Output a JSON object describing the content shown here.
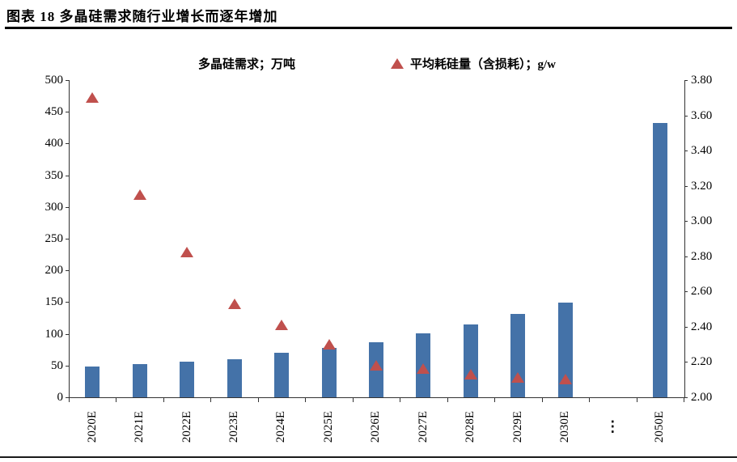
{
  "header": {
    "title": "图表 18 多晶硅需求随行业增长而逐年增加"
  },
  "legend": [
    {
      "label": "多晶硅需求；万吨",
      "marker": "square",
      "color": "#4472A8"
    },
    {
      "label": "平均耗硅量（含损耗）；g/w",
      "marker": "triangle",
      "color": "#C0504D"
    }
  ],
  "chart_data": {
    "type": "bar",
    "title": "图表 18 多晶硅需求随行业增长而逐年增加",
    "categories": [
      "2020E",
      "2021E",
      "2022E",
      "2023E",
      "2024E",
      "2025E",
      "2026E",
      "2027E",
      "2028E",
      "2029E",
      "2030E",
      "⋮",
      "2050E"
    ],
    "series": [
      {
        "name": "多晶硅需求；万吨",
        "type": "bar",
        "axis": "left",
        "color": "#4472A8",
        "values": [
          48,
          52,
          56,
          60,
          70,
          78,
          87,
          101,
          115,
          131,
          149,
          null,
          433
        ]
      },
      {
        "name": "平均耗硅量（含损耗）；g/w",
        "type": "scatter-triangle",
        "axis": "right",
        "color": "#C0504D",
        "values": [
          3.7,
          3.15,
          2.82,
          2.53,
          2.41,
          2.3,
          2.18,
          2.16,
          2.13,
          2.11,
          2.1,
          null,
          null
        ]
      }
    ],
    "left_axis": {
      "min": 0,
      "max": 500,
      "step": 50,
      "label": "万吨"
    },
    "right_axis": {
      "min": 2.0,
      "max": 3.8,
      "step": 0.2,
      "label": "g/w"
    },
    "grid": false,
    "legend_position": "top"
  }
}
